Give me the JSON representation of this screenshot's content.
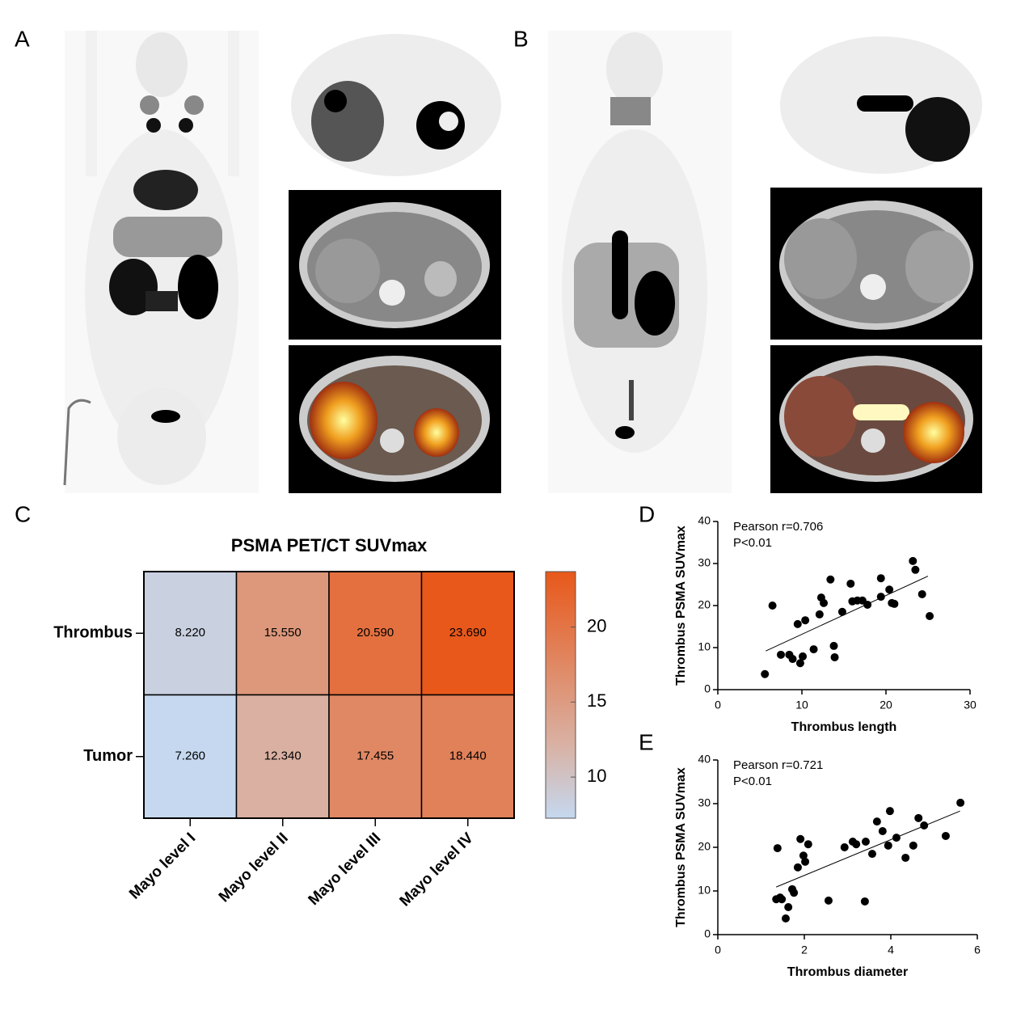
{
  "panel_labels": [
    "A",
    "B",
    "C",
    "D",
    "E"
  ],
  "chart_data": [
    {
      "type": "heatmap",
      "title": "PSMA PET/CT SUVmax",
      "x_categories": [
        "Mayo level I",
        "Mayo level II",
        "Mayo level III",
        "Mayo level IV"
      ],
      "y_categories": [
        "Thrombus",
        "Tumor"
      ],
      "values": [
        [
          8.22,
          15.55,
          20.59,
          23.69
        ],
        [
          7.26,
          12.34,
          17.455,
          18.44
        ]
      ],
      "value_labels": [
        [
          "8.220",
          "15.550",
          "20.590",
          "23.690"
        ],
        [
          "7.260",
          "12.340",
          "17.455",
          "18.440"
        ]
      ],
      "zlim": [
        7.26,
        23.69
      ],
      "zticks": [
        10,
        15,
        20
      ],
      "colorscale": [
        [
          0,
          "#c5d8ef"
        ],
        [
          0.3,
          "#d9b1a3"
        ],
        [
          1,
          "#e8581a"
        ]
      ]
    },
    {
      "type": "scatter",
      "xlabel": "Thrombus length",
      "ylabel": "Thrombus PSMA SUVmax",
      "annotations": [
        "Pearson r=0.706",
        "P<0.01"
      ],
      "color": "#000000",
      "x": [
        5.6,
        6.5,
        7.5,
        8.5,
        8.9,
        9.5,
        9.8,
        10.1,
        10.4,
        11.4,
        12.1,
        12.3,
        12.6,
        13.4,
        13.8,
        13.9,
        14.8,
        15.8,
        16,
        16.6,
        17.2,
        17.8,
        19.4,
        19.4,
        20.4,
        20.7,
        21,
        23.2,
        23.5,
        24.3,
        25.2
      ],
      "y": [
        3.7,
        20,
        8.3,
        8.3,
        7.3,
        15.6,
        6.3,
        7.9,
        16.5,
        9.6,
        17.9,
        21.9,
        20.6,
        26.2,
        10.4,
        7.7,
        18.5,
        25.2,
        21,
        21.2,
        21.2,
        20.2,
        26.5,
        22.1,
        23.8,
        20.6,
        20.4,
        30.6,
        28.5,
        22.7,
        17.5
      ],
      "fit": {
        "x": [
          5.7,
          25
        ],
        "y": [
          9.2,
          27
        ]
      },
      "xlim": [
        0,
        30
      ],
      "xticks": [
        0,
        10,
        20,
        30
      ],
      "ylim": [
        0,
        40
      ],
      "yticks": [
        0,
        10,
        20,
        30,
        40
      ]
    },
    {
      "type": "scatter",
      "xlabel": "Thrombus diameter",
      "ylabel": "Thrombus PSMA SUVmax",
      "annotations": [
        "Pearson r=0.721",
        "P<0.01"
      ],
      "color": "#000000",
      "x": [
        1.38,
        1.35,
        1.44,
        1.48,
        1.57,
        1.63,
        1.72,
        1.76,
        1.85,
        1.91,
        1.98,
        2.02,
        2.09,
        2.56,
        2.93,
        3.12,
        3.2,
        3.4,
        3.42,
        3.57,
        3.68,
        3.81,
        3.94,
        3.98,
        4.13,
        4.34,
        4.52,
        4.64,
        4.77,
        5.27,
        5.61
      ],
      "y": [
        19.8,
        8.1,
        8.5,
        8.1,
        3.7,
        6.3,
        10.4,
        9.6,
        15.4,
        21.9,
        18.1,
        16.7,
        20.7,
        7.8,
        20,
        21.3,
        20.7,
        7.6,
        21.3,
        18.5,
        25.9,
        23.7,
        20.4,
        28.3,
        22.2,
        17.6,
        20.4,
        26.7,
        25,
        22.6,
        30.2
      ],
      "fit": {
        "x": [
          1.35,
          5.6
        ],
        "y": [
          10.9,
          28.3
        ]
      },
      "xlim": [
        0,
        6
      ],
      "xticks": [
        0,
        2,
        4,
        6
      ],
      "ylim": [
        0,
        40
      ],
      "yticks": [
        0,
        10,
        20,
        30,
        40
      ]
    }
  ]
}
